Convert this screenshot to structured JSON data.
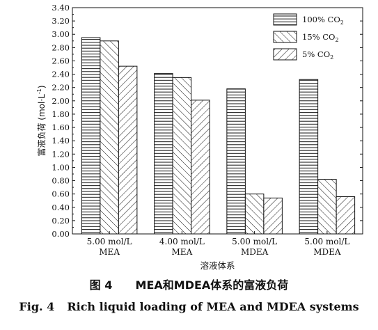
{
  "chart_data": {
    "type": "bar",
    "categories": [
      [
        "5.00 mol/L",
        "MEA"
      ],
      [
        "4.00 mol/L",
        "MEA"
      ],
      [
        "5.00 mol/L",
        "MDEA"
      ],
      [
        "5.00 mol/L",
        "MDEA"
      ]
    ],
    "series": [
      {
        "name": "100% CO",
        "sub": "2",
        "pattern": "horizontal",
        "values": [
          2.95,
          2.41,
          2.18,
          2.32
        ]
      },
      {
        "name": "15% CO",
        "sub": "2",
        "pattern": "diag-right",
        "values": [
          2.9,
          2.35,
          0.6,
          0.82
        ]
      },
      {
        "name": "5% CO",
        "sub": "2",
        "pattern": "diag-left",
        "values": [
          2.52,
          2.01,
          0.54,
          0.56
        ]
      }
    ],
    "xlabel": "溶液体系",
    "ylabel": "富液负荷 (mol·L",
    "ylabel_sup": "-1",
    "ylabel_close": ")",
    "ylim": [
      0,
      3.4
    ],
    "yticks": [
      "0.00",
      "0.20",
      "0.40",
      "0.60",
      "0.80",
      "1.00",
      "1.20",
      "1.40",
      "1.60",
      "1.80",
      "2.00",
      "2.20",
      "2.40",
      "2.60",
      "2.80",
      "3.00",
      "3.20",
      "3.40"
    ],
    "legend_position": "top-right",
    "grid": false
  },
  "caption": {
    "cn_label": "图 4",
    "cn_text": "MEA和MDEA体系的富液负荷",
    "en_label": "Fig. 4",
    "en_text": "Rich liquid loading of MEA and MDEA systems"
  },
  "colors": {
    "ink": "#111111",
    "fill": "#ffffff"
  }
}
